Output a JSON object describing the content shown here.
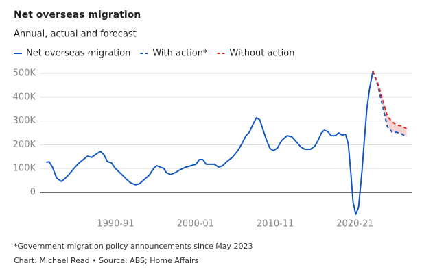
{
  "chart_data": {
    "type": "line",
    "title": "Net overseas migration",
    "subtitle": "Annual, actual and forecast",
    "footnote": "*Government migration policy announcements since May 2023",
    "source": "Chart: Michael Read • Source: ABS; Home Affairs",
    "xlim": [
      1981.5,
      2028.1
    ],
    "xticks": [
      {
        "value": 1991,
        "label": "1990-91"
      },
      {
        "value": 2001,
        "label": "2000-01"
      },
      {
        "value": 2011,
        "label": "2010-11"
      },
      {
        "value": 2021,
        "label": "2020-21"
      }
    ],
    "ylim": [
      -100000,
      520000
    ],
    "yticks": [
      {
        "value": 0,
        "label": "0"
      },
      {
        "value": 100000,
        "label": "100K"
      },
      {
        "value": 200000,
        "label": "200K"
      },
      {
        "value": 300000,
        "label": "300K"
      },
      {
        "value": 400000,
        "label": "400K"
      },
      {
        "value": 500000,
        "label": "500K"
      }
    ],
    "grid": true,
    "band_color": "#f6d3d3",
    "series": [
      {
        "name": "Net overseas migration",
        "color": "#1358c2",
        "dashed": false,
        "x": [
          1982.32,
          1982.66,
          1983.09,
          1983.61,
          1984.21,
          1984.72,
          1985.15,
          1985.84,
          1986.44,
          1986.96,
          1987.47,
          1987.99,
          1988.59,
          1989.11,
          1989.54,
          1989.97,
          1990.48,
          1990.91,
          1991.34,
          1991.86,
          1992.38,
          1992.89,
          1993.49,
          1994.01,
          1994.61,
          1995.21,
          1995.82,
          1996.16,
          1996.59,
          1997.02,
          1997.36,
          1997.88,
          1998.48,
          1999.08,
          1999.77,
          2000.46,
          2001.06,
          2001.49,
          2001.92,
          2002.35,
          2002.87,
          2003.38,
          2003.9,
          2004.41,
          2004.93,
          2005.62,
          2006.31,
          2006.82,
          2007.34,
          2007.77,
          2008.2,
          2008.63,
          2009.06,
          2009.49,
          2009.92,
          2010.35,
          2010.78,
          2011.29,
          2011.81,
          2012.5,
          2013.1,
          2013.7,
          2014.22,
          2014.73,
          2015.42,
          2015.94,
          2016.37,
          2016.8,
          2017.14,
          2017.57,
          2018.0,
          2018.52,
          2018.94,
          2019.37,
          2019.8,
          2020.15,
          2020.49,
          2020.75,
          2021.09,
          2021.44,
          2021.87,
          2022.13,
          2022.47,
          2022.81,
          2023.24
        ],
        "values": [
          126000,
          129000,
          106000,
          60000,
          46000,
          60000,
          75000,
          103000,
          124000,
          138000,
          152000,
          147000,
          161000,
          172000,
          158000,
          129000,
          124000,
          103000,
          89000,
          72000,
          55000,
          40000,
          32000,
          37000,
          55000,
          72000,
          103000,
          112000,
          106000,
          101000,
          83000,
          75000,
          83000,
          95000,
          106000,
          112000,
          118000,
          138000,
          138000,
          118000,
          118000,
          118000,
          106000,
          112000,
          129000,
          147000,
          175000,
          204000,
          238000,
          253000,
          285000,
          313000,
          305000,
          261000,
          218000,
          184000,
          175000,
          187000,
          218000,
          238000,
          233000,
          210000,
          190000,
          181000,
          181000,
          193000,
          218000,
          250000,
          261000,
          256000,
          238000,
          238000,
          250000,
          241000,
          244000,
          204000,
          75000,
          -40000,
          -92000,
          -63000,
          89000,
          204000,
          348000,
          434000,
          509000
        ]
      },
      {
        "name": "With action*",
        "color": "#1358c2",
        "dashed": true,
        "x": [
          2023.24,
          2023.85,
          2024.45,
          2025.05,
          2025.65,
          2026.25,
          2026.86,
          2027.46
        ],
        "values": [
          509000,
          448000,
          362000,
          276000,
          253000,
          252000,
          245000,
          233000
        ]
      },
      {
        "name": "Without action",
        "color": "#e0281e",
        "dashed": true,
        "x": [
          2023.24,
          2023.85,
          2024.45,
          2025.05,
          2025.65,
          2026.25,
          2026.86,
          2027.46
        ],
        "values": [
          509000,
          458000,
          391000,
          319000,
          296000,
          282000,
          279000,
          267000
        ]
      }
    ]
  }
}
